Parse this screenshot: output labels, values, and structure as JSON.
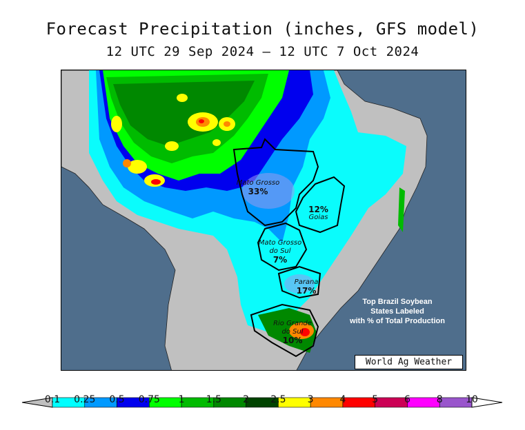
{
  "title": "Forecast Precipitation (inches, GFS model)",
  "subtitle": "12 UTC 29 Sep 2024 — 12 UTC 7 Oct 2024",
  "colors": {
    "ocean": "#4f6e8c",
    "land": "#c0c0c0",
    "scale": [
      "#00ffff",
      "#0099ff",
      "#0000ee",
      "#00ff00",
      "#00bb00",
      "#008800",
      "#004400",
      "#ffff00",
      "#ff8800",
      "#ff0000",
      "#cc0055",
      "#ff00ff",
      "#9955cc"
    ]
  },
  "legend": {
    "ticks": [
      "0.1",
      "0.25",
      "0.5",
      "0.75",
      "1",
      "1.5",
      "2",
      "2.5",
      "3",
      "4",
      "5",
      "6",
      "8",
      "10"
    ]
  },
  "states": [
    {
      "name": "Mato Grosso",
      "pct": "33%"
    },
    {
      "name": "Goias",
      "pct": "12%"
    },
    {
      "name": "Mato Grosso do Sul",
      "pct": "7%"
    },
    {
      "name": "Parana",
      "pct": "17%"
    },
    {
      "name": "Rio Grande do Sul",
      "pct": "10%"
    }
  ],
  "note": [
    "Top Brazil Soybean",
    "States Labeled",
    "with % of Total Production"
  ],
  "credit": "World Ag Weather"
}
